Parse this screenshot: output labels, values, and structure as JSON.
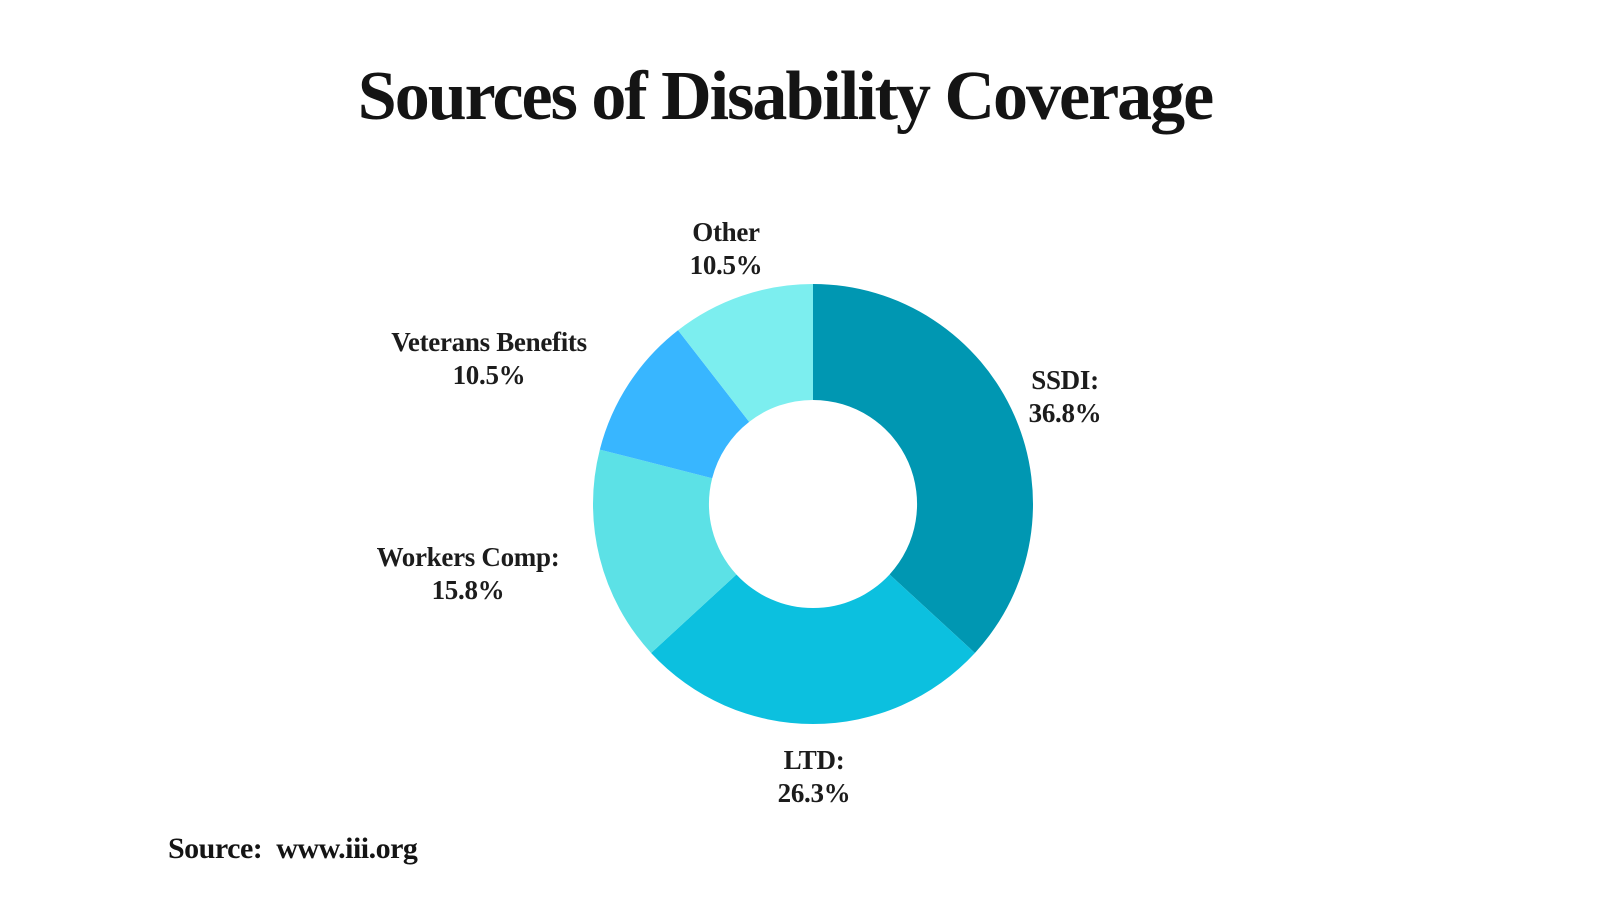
{
  "title": "Sources of Disability Coverage",
  "source": {
    "prefix": "Source:",
    "url": "www.iii.org"
  },
  "chart_data": {
    "type": "pie",
    "donut": true,
    "title": "Sources of Disability Coverage",
    "start_angle_deg": 0,
    "direction": "clockwise",
    "inner_radius_ratio": 0.473,
    "legend_position": "outside-labels",
    "background": "#ffffff",
    "segments": [
      {
        "label": "SSDI:",
        "value": 36.8,
        "display": "36.8%",
        "color": "#0097b2"
      },
      {
        "label": "LTD:",
        "value": 26.3,
        "display": "26.3%",
        "color": "#0cc0df"
      },
      {
        "label": "Workers Comp:",
        "value": 15.8,
        "display": "15.8%",
        "color": "#5ce1e6"
      },
      {
        "label": "Veterans Benefits",
        "value": 10.5,
        "display": "10.5%",
        "color": "#38b6ff"
      },
      {
        "label": "Other",
        "value": 10.5,
        "display": "10.5%",
        "color": "#7ceeef"
      }
    ]
  }
}
